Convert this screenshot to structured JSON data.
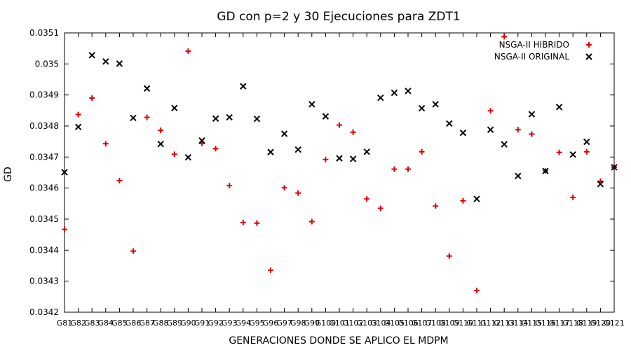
{
  "chart_data": {
    "type": "scatter",
    "title": "GD con p=2 y 30 Ejecuciones para ZDT1",
    "xlabel": "GENERACIONES DONDE SE APLICO EL MDPM",
    "ylabel": "GD",
    "categories": [
      "G81",
      "G82",
      "G83",
      "G84",
      "G85",
      "G86",
      "G87",
      "G88",
      "G89",
      "G90",
      "G91",
      "G92",
      "G93",
      "G94",
      "G95",
      "G96",
      "G97",
      "G98",
      "G99",
      "G100",
      "G101",
      "G102",
      "G103",
      "G104",
      "G105",
      "G106",
      "G107",
      "G108",
      "G109",
      "G110",
      "G111",
      "G112",
      "G113",
      "G114",
      "G115",
      "G116",
      "G117",
      "G118",
      "G119",
      "G120",
      "G121"
    ],
    "ylim": [
      0.0342,
      0.0351
    ],
    "yticks": [
      "0.0342",
      "0.0343",
      "0.0344",
      "0.0345",
      "0.0346",
      "0.0347",
      "0.0348",
      "0.0349",
      "0.035",
      "0.0351"
    ],
    "grid": false,
    "legend_position": "top-right",
    "series": [
      {
        "name": "NSGA-II HIBRIDO",
        "marker": "plus",
        "color": "#e00000",
        "values": [
          0.034467,
          0.034837,
          0.03489,
          0.034743,
          0.034624,
          0.034397,
          0.034828,
          0.034786,
          0.034709,
          0.035041,
          0.034744,
          0.034727,
          0.034608,
          0.034489,
          0.034487,
          0.034335,
          0.034601,
          0.034584,
          0.034492,
          0.034692,
          0.034803,
          0.03478,
          0.034565,
          0.034535,
          0.034661,
          0.034661,
          0.034717,
          0.034542,
          0.034381,
          0.034559,
          0.03427,
          0.034849,
          0.035088,
          0.034788,
          0.034774,
          0.034656,
          0.034715,
          0.03457,
          0.034717,
          0.034622,
          0.034667
        ]
      },
      {
        "name": "NSGA-II ORIGINAL",
        "marker": "x",
        "color": "#000000",
        "values": [
          0.034651,
          0.034797,
          0.035028,
          0.035008,
          0.035001,
          0.034826,
          0.034921,
          0.034742,
          0.034858,
          0.034699,
          0.034753,
          0.034824,
          0.034828,
          0.034928,
          0.034823,
          0.034716,
          0.034775,
          0.034724,
          0.03487,
          0.034831,
          0.034696,
          0.034694,
          0.034717,
          0.034891,
          0.034907,
          0.034913,
          0.034857,
          0.03487,
          0.034808,
          0.034778,
          0.034565,
          0.034788,
          0.034741,
          0.034639,
          0.034838,
          0.034655,
          0.034861,
          0.034708,
          0.034749,
          0.034613,
          0.034667
        ]
      }
    ]
  }
}
